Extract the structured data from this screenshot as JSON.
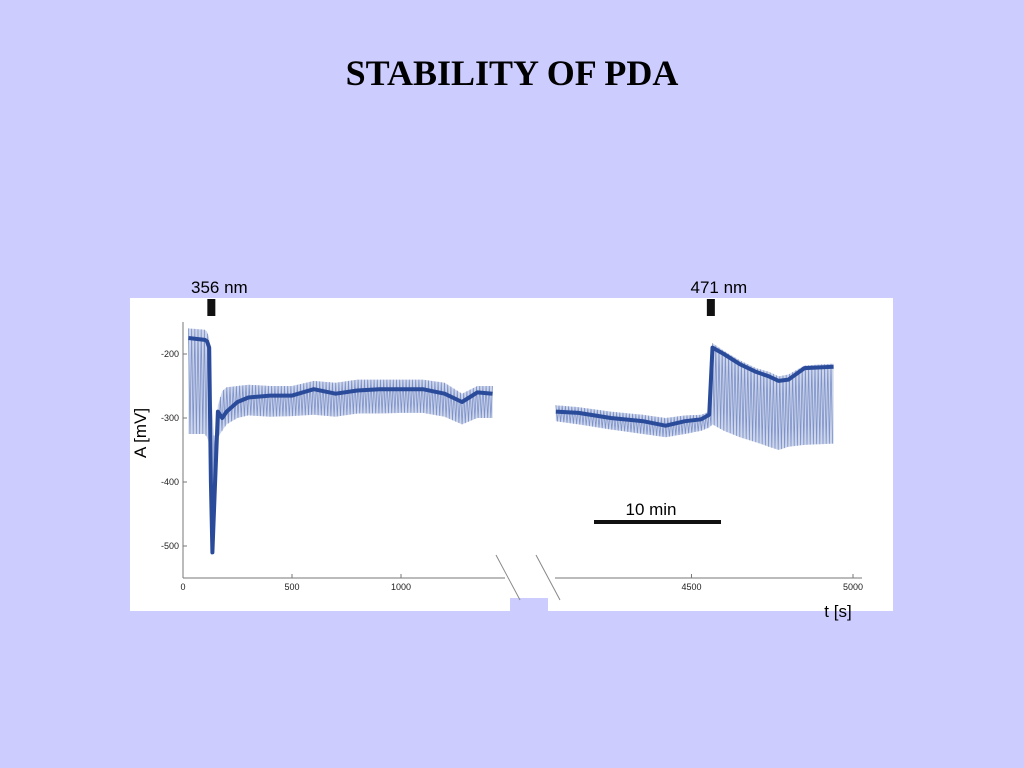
{
  "slide": {
    "title": "STABILITY OF PDA"
  },
  "colors": {
    "background": "#ccccff",
    "plot_bg": "#ffffff",
    "trace": "#2a4a9a",
    "trace_light": "#6f86c4",
    "bars": "#111111"
  },
  "chart_data": {
    "type": "line",
    "title": "",
    "xlabel": "t [s]",
    "ylabel": "A [mV]",
    "ylim": [
      -550,
      -150
    ],
    "y_ticks": [
      -200,
      -300,
      -400,
      -500
    ],
    "broken_x_axis": true,
    "segments": [
      {
        "xlim": [
          0,
          1500
        ],
        "x_ticks": [
          0,
          500,
          1000
        ]
      },
      {
        "xlim": [
          4050,
          5000
        ],
        "x_ticks": [
          4500,
          5000
        ]
      }
    ],
    "markers": [
      {
        "label": "356 nm",
        "x": 130
      },
      {
        "label": "471 nm",
        "x": 4560
      }
    ],
    "scale_bar": {
      "label": "10 min"
    },
    "series": [
      {
        "x": [
          25,
          100,
          110,
          120,
          128,
          135,
          145,
          160,
          180,
          200,
          250,
          300,
          400,
          500,
          600,
          700,
          800,
          900,
          1000,
          1100,
          1200,
          1280,
          1350,
          1420
        ],
        "upper": [
          -160,
          -162,
          -165,
          -175,
          -255,
          -290,
          -340,
          -280,
          -258,
          -252,
          -250,
          -248,
          -250,
          -250,
          -242,
          -245,
          -240,
          -240,
          -240,
          -240,
          -245,
          -262,
          -250,
          -250
        ],
        "center": [
          -175,
          -178,
          -180,
          -190,
          -400,
          -510,
          -420,
          -290,
          -300,
          -290,
          -275,
          -268,
          -265,
          -265,
          -255,
          -262,
          -257,
          -255,
          -255,
          -255,
          -262,
          -275,
          -260,
          -262
        ],
        "lower": [
          -325,
          -325,
          -330,
          -340,
          -450,
          -510,
          -470,
          -330,
          -320,
          -310,
          -300,
          -296,
          -298,
          -297,
          -295,
          -298,
          -293,
          -293,
          -292,
          -292,
          -298,
          -310,
          -300,
          -300
        ]
      },
      {
        "x": [
          4080,
          4150,
          4250,
          4350,
          4420,
          4480,
          4530,
          4555,
          4565,
          4600,
          4650,
          4700,
          4740,
          4770,
          4800,
          4850,
          4940
        ],
        "upper": [
          -280,
          -283,
          -290,
          -295,
          -300,
          -296,
          -295,
          -290,
          -183,
          -195,
          -210,
          -222,
          -228,
          -235,
          -232,
          -218,
          -215
        ],
        "center": [
          -290,
          -292,
          -300,
          -305,
          -312,
          -305,
          -302,
          -295,
          -190,
          -200,
          -216,
          -228,
          -235,
          -242,
          -240,
          -222,
          -220
        ],
        "lower": [
          -305,
          -310,
          -318,
          -325,
          -330,
          -325,
          -320,
          -315,
          -310,
          -320,
          -330,
          -338,
          -345,
          -350,
          -345,
          -342,
          -340
        ]
      }
    ]
  }
}
